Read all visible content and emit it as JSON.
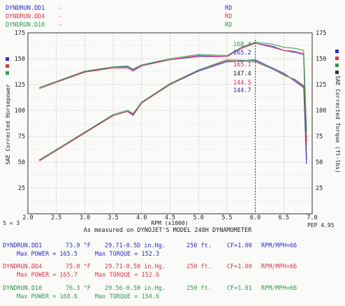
{
  "colors": {
    "run1": "#2c2cd0",
    "run2": "#e0304a",
    "run3": "#2e9a4e",
    "grid": "#9a9a9a",
    "ink": "#222222",
    "dash": "#c03060"
  },
  "header": {
    "runs": [
      {
        "file": "DYNDRUN.DD1",
        "suffix": "RD"
      },
      {
        "file": "DYNDRUN.DD4",
        "suffix": "RD"
      },
      {
        "file": "DYNDRUN.D10",
        "suffix": "RD"
      }
    ]
  },
  "chart_data": {
    "type": "line",
    "xlabel": "RPM (x1000)",
    "ylabel_left": "SAE Corrected Horsepower",
    "ylabel_right": "SAE Corrected Torque (ft-lbs)",
    "xlim": [
      2.0,
      7.0
    ],
    "ylim": [
      0,
      175
    ],
    "x_ticks": [
      "2.0",
      "2.5",
      "3.0",
      "3.5",
      "4.0",
      "4.5",
      "5.0",
      "5.5",
      "6.0",
      "6.5",
      "7.0"
    ],
    "y_ticks_left": [
      "0",
      "25",
      "50",
      "75",
      "100",
      "125",
      "150",
      "175"
    ],
    "y_ticks_right": [
      "0",
      "25",
      "50",
      "75",
      "100",
      "125",
      "150",
      "175"
    ],
    "grid": true,
    "cursor_rpm": 6.0,
    "smoothing": "S = 3",
    "pep": "PEP 4.95",
    "subtitle": "As measured on DYNOJET'S MODEL 248H DYNAMOMETER",
    "cursor_readouts": [
      {
        "value": "168.4",
        "color": "run3"
      },
      {
        "value": "165.2",
        "color": "run1"
      },
      {
        "value": "165.1",
        "color": "run2"
      },
      {
        "value": "147.4",
        "color": "ink"
      },
      {
        "value": "144.5",
        "color": "run2"
      },
      {
        "value": "144.7",
        "color": "run1"
      }
    ],
    "power": {
      "x": [
        2.2,
        2.5,
        3.0,
        3.5,
        3.75,
        3.85,
        4.0,
        4.5,
        5.0,
        5.5,
        6.0,
        6.3,
        6.5,
        6.7,
        6.85,
        6.9
      ],
      "series": [
        {
          "color": "run1",
          "y": [
            52,
            62,
            79,
            95,
            99,
            96,
            108,
            125,
            138,
            147,
            149,
            141,
            136,
            128,
            122,
            48
          ]
        },
        {
          "color": "run2",
          "y": [
            51,
            61,
            78,
            95,
            99,
            95,
            107,
            125,
            139,
            148,
            147,
            140,
            135,
            129,
            123,
            66
          ]
        },
        {
          "color": "run3",
          "y": [
            52,
            62,
            79,
            96,
            100,
            97,
            108,
            126,
            139,
            149,
            148,
            140,
            134,
            130,
            124,
            80
          ]
        }
      ]
    },
    "torque": {
      "x": [
        2.2,
        2.5,
        3.0,
        3.5,
        3.75,
        3.85,
        4.0,
        4.5,
        5.0,
        5.5,
        5.75,
        6.0,
        6.3,
        6.5,
        6.7,
        6.85,
        6.9
      ],
      "series": [
        {
          "color": "run1",
          "y": [
            122,
            128,
            137,
            142,
            142,
            139,
            144,
            149,
            152,
            152,
            160,
            165,
            162,
            158,
            156,
            154,
            52
          ]
        },
        {
          "color": "run2",
          "y": [
            121,
            127,
            137,
            141,
            141,
            138,
            143,
            149,
            153,
            152,
            160,
            165,
            161,
            158,
            157,
            155,
            70
          ]
        },
        {
          "color": "run3",
          "y": [
            122,
            128,
            138,
            142,
            143,
            140,
            144,
            150,
            154,
            153,
            161,
            166,
            164,
            161,
            160,
            158,
            80
          ]
        }
      ]
    }
  },
  "footer": {
    "runs": [
      {
        "file": "DYNDRUN.DD1",
        "temp": "73.9 °F",
        "baro": "29.71-0.5D in.Hg.",
        "alt": "250 ft.",
        "cf": "CF=1.00",
        "rpm": "RPM/MPH=66",
        "max_power": "Max POWER = 165.5",
        "max_torque": "Max TORQUE = 152.3"
      },
      {
        "file": "DYNDRUN.DD4",
        "temp": "75.0 °F",
        "baro": "29.71-0.50 in.Hg.",
        "alt": "250 ft.",
        "cf": "CF=1.00",
        "rpm": "RPM/MPH=66",
        "max_power": "Max POWER = 165.7",
        "max_torque": "Max TORQUE = 152.6"
      },
      {
        "file": "DYNDRUN.D10",
        "temp": "76.3 °F",
        "baro": "29.56-0.50 in.Hg.",
        "alt": "250 ft.",
        "cf": "CF=1.01",
        "rpm": "RPM/MPH=66",
        "max_power": "Max POWER = 168.6",
        "max_torque": "Max TORQUE = 154.6"
      }
    ]
  }
}
